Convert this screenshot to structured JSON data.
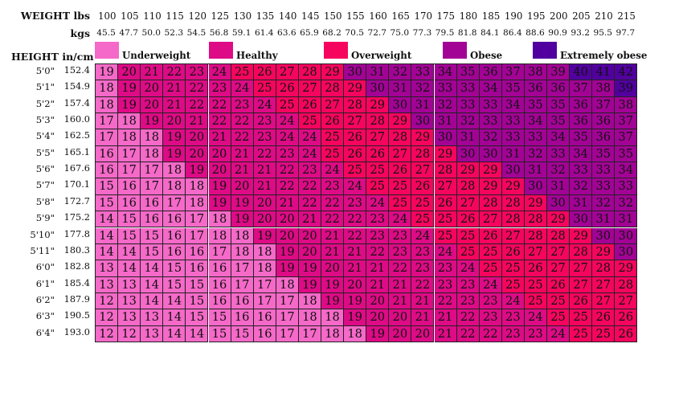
{
  "chart_data": {
    "type": "heatmap",
    "row_axis_label": "HEIGHT in/cm",
    "col_axis_label_lbs": "WEIGHT lbs",
    "col_axis_label_kgs": "kgs",
    "weights_lbs": [
      "100",
      "105",
      "110",
      "115",
      "120",
      "125",
      "130",
      "135",
      "140",
      "145",
      "150",
      "155",
      "160",
      "165",
      "170",
      "175",
      "180",
      "185",
      "190",
      "195",
      "200",
      "205",
      "210",
      "215"
    ],
    "weights_kgs": [
      "45.5",
      "47.7",
      "50.0",
      "52.3",
      "54.5",
      "56.8",
      "59.1",
      "61.4",
      "63.6",
      "65.9",
      "68.2",
      "70.5",
      "72.7",
      "75.0",
      "77.3",
      "79.5",
      "81.8",
      "84.1",
      "86.4",
      "88.6",
      "90.9",
      "93.2",
      "95.5",
      "97.7"
    ],
    "heights_ft": [
      "5'0\"",
      "5'1\"",
      "5'2\"",
      "5'3\"",
      "5'4\"",
      "5'5\"",
      "5'6\"",
      "5'7\"",
      "5'8\"",
      "5'9\"",
      "5'10\"",
      "5'11\"",
      "6'0\"",
      "6'1\"",
      "6'2\"",
      "6'3\"",
      "6'4\""
    ],
    "heights_cm": [
      "152.4",
      "154.9",
      "157.4",
      "160.0",
      "162.5",
      "165.1",
      "167.6",
      "170.1",
      "172.7",
      "175.2",
      "177.8",
      "180.3",
      "182.8",
      "185.4",
      "187.9",
      "190.5",
      "193.0"
    ],
    "legend": [
      {
        "label": "Underweight",
        "color": "#f569c8"
      },
      {
        "label": "Healthy",
        "color": "#dd0b85"
      },
      {
        "label": "Overweight",
        "color": "#f5055e"
      },
      {
        "label": "Obese",
        "color": "#a20395"
      },
      {
        "label": "Extremely obese",
        "color": "#51009f"
      }
    ],
    "category_colors": [
      "#f569c8",
      "#dd0b85",
      "#f5055e",
      "#a20395",
      "#51009f"
    ],
    "values": [
      [
        19,
        20,
        21,
        22,
        23,
        24,
        25,
        26,
        27,
        28,
        29,
        30,
        31,
        32,
        33,
        34,
        35,
        36,
        37,
        38,
        39,
        40,
        41,
        42
      ],
      [
        18,
        19,
        20,
        21,
        22,
        23,
        24,
        25,
        26,
        27,
        28,
        29,
        30,
        31,
        32,
        33,
        33,
        34,
        35,
        36,
        36,
        37,
        38,
        39
      ],
      [
        18,
        19,
        20,
        21,
        22,
        22,
        23,
        24,
        25,
        26,
        27,
        28,
        29,
        30,
        31,
        32,
        33,
        33,
        34,
        35,
        35,
        36,
        37,
        38
      ],
      [
        17,
        18,
        19,
        20,
        21,
        22,
        22,
        23,
        24,
        25,
        26,
        27,
        28,
        29,
        30,
        31,
        32,
        33,
        33,
        34,
        35,
        36,
        36,
        37
      ],
      [
        17,
        18,
        18,
        19,
        20,
        21,
        22,
        23,
        24,
        24,
        25,
        26,
        27,
        28,
        29,
        30,
        31,
        32,
        33,
        33,
        34,
        35,
        36,
        37
      ],
      [
        16,
        17,
        18,
        19,
        20,
        20,
        21,
        22,
        23,
        24,
        25,
        26,
        26,
        27,
        28,
        29,
        30,
        30,
        31,
        32,
        33,
        34,
        35,
        35
      ],
      [
        16,
        17,
        17,
        18,
        19,
        20,
        21,
        21,
        22,
        23,
        24,
        25,
        25,
        26,
        27,
        28,
        29,
        29,
        30,
        31,
        32,
        33,
        33,
        34
      ],
      [
        15,
        16,
        17,
        18,
        18,
        19,
        20,
        21,
        22,
        22,
        23,
        24,
        25,
        25,
        26,
        27,
        28,
        29,
        29,
        30,
        31,
        32,
        33,
        33
      ],
      [
        15,
        16,
        16,
        17,
        18,
        19,
        19,
        20,
        21,
        22,
        22,
        23,
        24,
        25,
        25,
        26,
        27,
        28,
        28,
        29,
        30,
        31,
        32,
        32
      ],
      [
        14,
        15,
        16,
        16,
        17,
        18,
        19,
        20,
        20,
        21,
        22,
        22,
        23,
        24,
        25,
        25,
        26,
        27,
        28,
        28,
        29,
        30,
        31,
        31
      ],
      [
        14,
        15,
        15,
        16,
        17,
        18,
        18,
        19,
        20,
        20,
        21,
        22,
        23,
        23,
        24,
        25,
        25,
        26,
        27,
        28,
        28,
        29,
        30,
        30
      ],
      [
        14,
        14,
        15,
        16,
        16,
        17,
        18,
        18,
        19,
        20,
        21,
        21,
        22,
        23,
        23,
        24,
        25,
        25,
        26,
        27,
        27,
        28,
        29,
        30
      ],
      [
        13,
        14,
        14,
        15,
        16,
        16,
        17,
        18,
        19,
        19,
        20,
        21,
        21,
        22,
        23,
        23,
        24,
        25,
        25,
        26,
        27,
        27,
        28,
        29
      ],
      [
        13,
        13,
        14,
        15,
        15,
        16,
        17,
        17,
        18,
        19,
        19,
        20,
        21,
        21,
        22,
        23,
        23,
        24,
        25,
        25,
        26,
        27,
        27,
        28
      ],
      [
        12,
        13,
        14,
        14,
        15,
        16,
        16,
        17,
        17,
        18,
        19,
        19,
        20,
        21,
        21,
        22,
        23,
        23,
        24,
        25,
        25,
        26,
        27,
        27
      ],
      [
        12,
        13,
        13,
        14,
        15,
        15,
        16,
        16,
        17,
        18,
        18,
        19,
        20,
        20,
        21,
        21,
        22,
        23,
        23,
        24,
        25,
        25,
        26,
        26
      ],
      [
        12,
        12,
        13,
        14,
        14,
        15,
        15,
        16,
        17,
        17,
        18,
        18,
        19,
        20,
        20,
        21,
        22,
        22,
        23,
        23,
        24,
        25,
        25,
        26
      ]
    ],
    "categories_grid": [
      [
        0,
        1,
        1,
        1,
        1,
        1,
        2,
        2,
        2,
        2,
        2,
        3,
        3,
        3,
        3,
        3,
        3,
        3,
        3,
        3,
        3,
        4,
        4,
        4
      ],
      [
        0,
        1,
        1,
        1,
        1,
        1,
        1,
        2,
        2,
        2,
        2,
        2,
        3,
        3,
        3,
        3,
        3,
        3,
        3,
        3,
        3,
        3,
        3,
        4
      ],
      [
        0,
        1,
        1,
        1,
        1,
        1,
        1,
        1,
        2,
        2,
        2,
        2,
        2,
        3,
        3,
        3,
        3,
        3,
        3,
        3,
        3,
        3,
        3,
        3
      ],
      [
        0,
        0,
        1,
        1,
        1,
        1,
        1,
        1,
        1,
        2,
        2,
        2,
        2,
        2,
        3,
        3,
        3,
        3,
        3,
        3,
        3,
        3,
        3,
        3
      ],
      [
        0,
        0,
        0,
        1,
        1,
        1,
        1,
        1,
        1,
        1,
        2,
        2,
        2,
        2,
        2,
        3,
        3,
        3,
        3,
        3,
        3,
        3,
        3,
        3
      ],
      [
        0,
        0,
        0,
        1,
        1,
        1,
        1,
        1,
        1,
        1,
        2,
        2,
        2,
        2,
        2,
        2,
        3,
        3,
        3,
        3,
        3,
        3,
        3,
        3
      ],
      [
        0,
        0,
        0,
        0,
        1,
        1,
        1,
        1,
        1,
        1,
        1,
        2,
        2,
        2,
        2,
        2,
        2,
        2,
        3,
        3,
        3,
        3,
        3,
        3
      ],
      [
        0,
        0,
        0,
        0,
        0,
        1,
        1,
        1,
        1,
        1,
        1,
        1,
        2,
        2,
        2,
        2,
        2,
        2,
        2,
        3,
        3,
        3,
        3,
        3
      ],
      [
        0,
        0,
        0,
        0,
        0,
        1,
        1,
        1,
        1,
        1,
        1,
        1,
        1,
        2,
        2,
        2,
        2,
        2,
        2,
        2,
        3,
        3,
        3,
        3
      ],
      [
        0,
        0,
        0,
        0,
        0,
        0,
        1,
        1,
        1,
        1,
        1,
        1,
        1,
        1,
        2,
        2,
        2,
        2,
        2,
        2,
        2,
        3,
        3,
        3
      ],
      [
        0,
        0,
        0,
        0,
        0,
        0,
        0,
        1,
        1,
        1,
        1,
        1,
        1,
        1,
        1,
        2,
        2,
        2,
        2,
        2,
        2,
        2,
        3,
        3
      ],
      [
        0,
        0,
        0,
        0,
        0,
        0,
        0,
        0,
        1,
        1,
        1,
        1,
        1,
        1,
        1,
        1,
        2,
        2,
        2,
        2,
        2,
        2,
        2,
        3
      ],
      [
        0,
        0,
        0,
        0,
        0,
        0,
        0,
        0,
        1,
        1,
        1,
        1,
        1,
        1,
        1,
        1,
        1,
        2,
        2,
        2,
        2,
        2,
        2,
        2
      ],
      [
        0,
        0,
        0,
        0,
        0,
        0,
        0,
        0,
        0,
        1,
        1,
        1,
        1,
        1,
        1,
        1,
        1,
        1,
        2,
        2,
        2,
        2,
        2,
        2
      ],
      [
        0,
        0,
        0,
        0,
        0,
        0,
        0,
        0,
        0,
        0,
        1,
        1,
        1,
        1,
        1,
        1,
        1,
        1,
        1,
        2,
        2,
        2,
        2,
        2
      ],
      [
        0,
        0,
        0,
        0,
        0,
        0,
        0,
        0,
        0,
        0,
        0,
        1,
        1,
        1,
        1,
        1,
        1,
        1,
        1,
        1,
        2,
        2,
        2,
        2
      ],
      [
        0,
        0,
        0,
        0,
        0,
        0,
        0,
        0,
        0,
        0,
        0,
        0,
        1,
        1,
        1,
        1,
        1,
        1,
        1,
        1,
        1,
        2,
        2,
        2
      ]
    ]
  }
}
